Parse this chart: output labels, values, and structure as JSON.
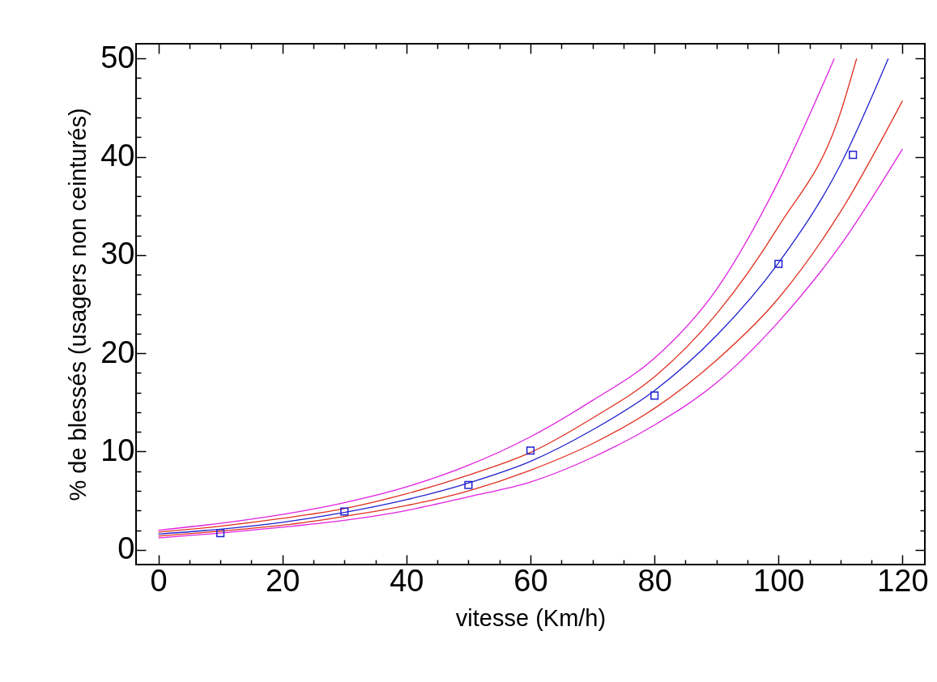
{
  "chart_data": {
    "type": "line",
    "xlabel": "vitesse (Km/h)",
    "ylabel": "% de blessés (usagers non ceinturés)",
    "xlim": [
      -3.6,
      123.6
    ],
    "ylim": [
      -1.5,
      51.5
    ],
    "xticks": [
      0,
      {
        "value": 5,
        "label": null
      },
      {
        "value": 10,
        "label": null
      },
      {
        "value": 15,
        "label": null
      },
      20,
      {
        "value": 25,
        "label": null
      },
      {
        "value": 30,
        "label": null
      },
      {
        "value": 35,
        "label": null
      },
      40,
      {
        "value": 45,
        "label": null
      },
      {
        "value": 50,
        "label": null
      },
      {
        "value": 55,
        "label": null
      },
      60,
      {
        "value": 65,
        "label": null
      },
      {
        "value": 70,
        "label": null
      },
      {
        "value": 75,
        "label": null
      },
      80,
      {
        "value": 85,
        "label": null
      },
      {
        "value": 90,
        "label": null
      },
      {
        "value": 95,
        "label": null
      },
      100,
      {
        "value": 105,
        "label": null
      },
      {
        "value": 110,
        "label": null
      },
      {
        "value": 115,
        "label": null
      },
      120
    ],
    "yticks": [
      0,
      {
        "value": 2,
        "label": null
      },
      {
        "value": 4,
        "label": null
      },
      {
        "value": 6,
        "label": null
      },
      {
        "value": 8,
        "label": null
      },
      10,
      {
        "value": 12,
        "label": null
      },
      {
        "value": 14,
        "label": null
      },
      {
        "value": 16,
        "label": null
      },
      {
        "value": 18,
        "label": null
      },
      20,
      {
        "value": 22,
        "label": null
      },
      {
        "value": 24,
        "label": null
      },
      {
        "value": 26,
        "label": null
      },
      {
        "value": 28,
        "label": null
      },
      30,
      {
        "value": 32,
        "label": null
      },
      {
        "value": 34,
        "label": null
      },
      {
        "value": 36,
        "label": null
      },
      {
        "value": 38,
        "label": null
      },
      40,
      {
        "value": 42,
        "label": null
      },
      {
        "value": 44,
        "label": null
      },
      {
        "value": 46,
        "label": null
      },
      {
        "value": 48,
        "label": null
      },
      50
    ],
    "grid": false,
    "series": [
      {
        "color": "#e020e0",
        "x": [
          0,
          10,
          20,
          30,
          40,
          50,
          60,
          70,
          80,
          90,
          100,
          109
        ],
        "values": [
          2.0,
          2.7,
          3.6,
          4.8,
          6.4,
          8.6,
          11.5,
          15.2,
          19.5,
          26.5,
          37.5,
          50
        ]
      },
      {
        "color": "#e020e0",
        "x": [
          0,
          10,
          20,
          30,
          40,
          50,
          60,
          70,
          80,
          90,
          100,
          110,
          120
        ],
        "values": [
          1.2,
          1.7,
          2.3,
          3.0,
          4.0,
          5.4,
          6.9,
          9.4,
          12.7,
          17.0,
          23.2,
          31.0,
          40.8
        ]
      },
      {
        "color": "#e03020",
        "x": [
          0,
          10,
          20,
          30,
          40,
          50,
          60,
          70,
          80,
          90,
          100,
          110,
          112.6
        ],
        "values": [
          1.8,
          2.4,
          3.2,
          4.2,
          5.7,
          7.6,
          9.9,
          13.4,
          17.6,
          24.0,
          32.9,
          44.5,
          50
        ]
      },
      {
        "color": "#e03020",
        "x": [
          0,
          10,
          20,
          30,
          40,
          50,
          60,
          70,
          80,
          90,
          100,
          110,
          120
        ],
        "values": [
          1.4,
          1.9,
          2.5,
          3.4,
          4.5,
          6.0,
          8.1,
          10.8,
          14.4,
          19.3,
          25.6,
          34.4,
          45.7
        ]
      },
      {
        "color": "#2020d0",
        "x": [
          0,
          10,
          20,
          30,
          40,
          50,
          60,
          70,
          80,
          90,
          100,
          110,
          117.7
        ],
        "values": [
          1.6,
          2.1,
          2.8,
          3.8,
          5.1,
          6.8,
          9.0,
          12.2,
          16.2,
          21.8,
          29.2,
          39.2,
          50
        ]
      },
      {
        "type": "scatter",
        "marker": "square",
        "color": "#2020d0",
        "x": [
          10,
          30,
          50,
          60,
          80,
          100,
          112
        ],
        "values": [
          1.7,
          3.9,
          6.6,
          10.1,
          15.7,
          29.1,
          40.2
        ]
      }
    ]
  }
}
